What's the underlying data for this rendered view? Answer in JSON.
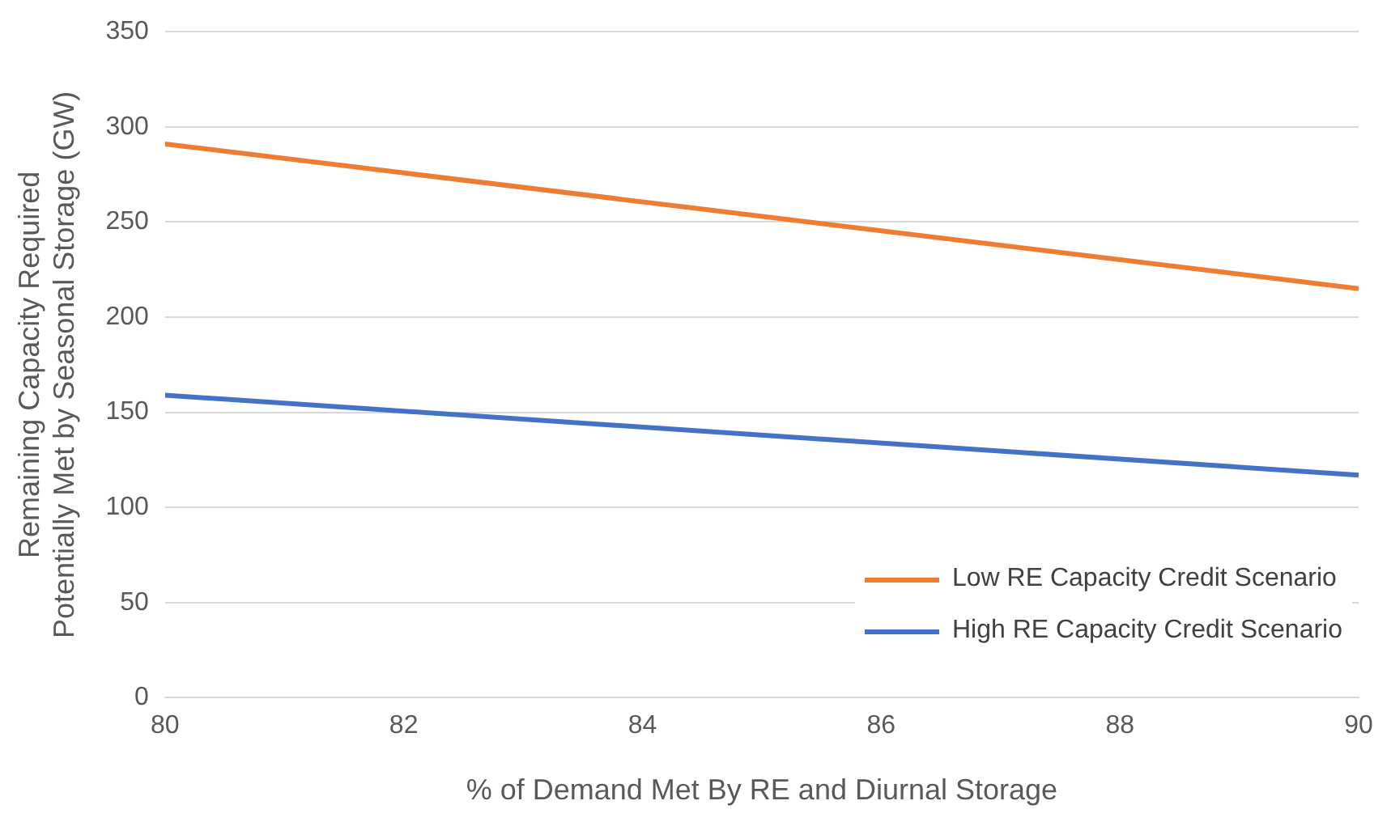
{
  "chart_data": {
    "type": "line",
    "xlabel": "% of Demand Met By RE and Diurnal Storage",
    "ylabel": "Remaining Capacity Required Potentially Met by Seasonal Storage (GW)",
    "x": [
      80,
      90
    ],
    "series": [
      {
        "name": "Low RE Capacity Credit Scenario",
        "color": "#ed7d31",
        "values": [
          291,
          215
        ]
      },
      {
        "name": "High RE Capacity Credit Scenario",
        "color": "#4472c4",
        "values": [
          159,
          117
        ]
      }
    ],
    "xlim": [
      80,
      90
    ],
    "xticks": [
      80,
      82,
      84,
      86,
      88,
      90
    ],
    "ylim": [
      0,
      350
    ],
    "yticks": [
      0,
      50,
      100,
      150,
      200,
      250,
      300,
      350
    ],
    "grid": "y",
    "legend": "bottom right",
    "marker": "none",
    "line_style": "solid"
  }
}
